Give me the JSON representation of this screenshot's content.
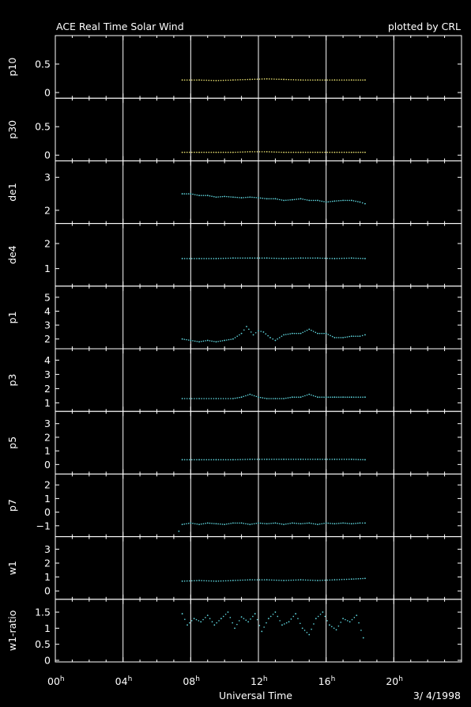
{
  "header": {
    "title": "ACE Real Time Solar Wind",
    "credit": "plotted by CRL"
  },
  "footer": {
    "xlabel": "Universal Time",
    "date": "3/ 4/1998"
  },
  "colors": {
    "background": "#000000",
    "axes": "#ffffff",
    "yellow_series": "#e8e070",
    "cyan_series": "#60d8e0"
  },
  "chart_data": {
    "type": "scatter",
    "x_unit": "hours UT",
    "xlim": [
      0,
      24
    ],
    "x_ticks": [
      {
        "value": 0,
        "label": "00",
        "sup": "h"
      },
      {
        "value": 4,
        "label": "04",
        "sup": "h"
      },
      {
        "value": 8,
        "label": "08",
        "sup": "h"
      },
      {
        "value": 12,
        "label": "12",
        "sup": "h"
      },
      {
        "value": 16,
        "label": "16",
        "sup": "h"
      },
      {
        "value": 20,
        "label": "20",
        "sup": "h"
      }
    ],
    "panels": [
      {
        "ylabel": "p10",
        "ylim": [
          -0.1,
          1.0
        ],
        "yticks": [
          {
            "v": 0,
            "t": "0"
          },
          {
            "v": 0.5,
            "t": "0.5"
          }
        ],
        "color": "yellow",
        "x": [
          7.5,
          8.5,
          9.5,
          10.5,
          11.5,
          12.5,
          13.5,
          14.5,
          15.5,
          16.5,
          17.5,
          18.3
        ],
        "y": [
          0.22,
          0.22,
          0.21,
          0.22,
          0.23,
          0.24,
          0.23,
          0.22,
          0.22,
          0.22,
          0.22,
          0.22
        ]
      },
      {
        "ylabel": "p30",
        "ylim": [
          -0.1,
          1.0
        ],
        "yticks": [
          {
            "v": 0,
            "t": "0"
          },
          {
            "v": 0.5,
            "t": "0.5"
          }
        ],
        "color": "yellow",
        "x": [
          7.5,
          8.5,
          9.5,
          10.5,
          11.5,
          12.5,
          13.5,
          14.5,
          15.5,
          16.5,
          17.5,
          18.3
        ],
        "y": [
          0.05,
          0.05,
          0.05,
          0.05,
          0.06,
          0.06,
          0.05,
          0.05,
          0.05,
          0.05,
          0.05,
          0.05
        ]
      },
      {
        "ylabel": "de1",
        "ylim": [
          1.6,
          3.5
        ],
        "yticks": [
          {
            "v": 2,
            "t": "2"
          },
          {
            "v": 3,
            "t": "3"
          }
        ],
        "color": "cyan",
        "x": [
          7.5,
          8.0,
          8.5,
          9.0,
          9.5,
          10.0,
          10.5,
          11.0,
          11.5,
          12.0,
          12.5,
          13.0,
          13.5,
          14.0,
          14.5,
          15.0,
          15.5,
          16.0,
          16.5,
          17.0,
          17.5,
          18.0,
          18.3
        ],
        "y": [
          2.5,
          2.5,
          2.45,
          2.45,
          2.4,
          2.42,
          2.4,
          2.38,
          2.4,
          2.38,
          2.35,
          2.35,
          2.3,
          2.32,
          2.35,
          2.3,
          2.3,
          2.25,
          2.28,
          2.3,
          2.3,
          2.25,
          2.2
        ]
      },
      {
        "ylabel": "de4",
        "ylim": [
          0.3,
          2.8
        ],
        "yticks": [
          {
            "v": 1,
            "t": "1"
          },
          {
            "v": 2,
            "t": "2"
          }
        ],
        "color": "cyan",
        "x": [
          7.5,
          8.5,
          9.5,
          10.5,
          11.5,
          12.5,
          13.5,
          14.5,
          15.5,
          16.5,
          17.5,
          18.3
        ],
        "y": [
          1.4,
          1.4,
          1.4,
          1.42,
          1.42,
          1.42,
          1.4,
          1.42,
          1.42,
          1.4,
          1.42,
          1.4
        ]
      },
      {
        "ylabel": "p1",
        "ylim": [
          1.3,
          5.8
        ],
        "yticks": [
          {
            "v": 2,
            "t": "2"
          },
          {
            "v": 3,
            "t": "3"
          },
          {
            "v": 4,
            "t": "4"
          },
          {
            "v": 5,
            "t": "5"
          }
        ],
        "color": "cyan",
        "x": [
          7.5,
          8.0,
          8.5,
          9.0,
          9.5,
          10.0,
          10.5,
          11.0,
          11.3,
          11.7,
          12.0,
          12.3,
          12.7,
          13.0,
          13.5,
          14.0,
          14.5,
          15.0,
          15.5,
          16.0,
          16.5,
          17.0,
          17.5,
          18.0,
          18.3
        ],
        "y": [
          2.0,
          1.9,
          1.8,
          1.9,
          1.8,
          1.9,
          2.0,
          2.4,
          2.9,
          2.3,
          2.6,
          2.5,
          2.1,
          1.9,
          2.3,
          2.4,
          2.4,
          2.7,
          2.4,
          2.4,
          2.1,
          2.1,
          2.2,
          2.2,
          2.3
        ]
      },
      {
        "ylabel": "p3",
        "ylim": [
          0.4,
          4.8
        ],
        "yticks": [
          {
            "v": 1,
            "t": "1"
          },
          {
            "v": 2,
            "t": "2"
          },
          {
            "v": 3,
            "t": "3"
          },
          {
            "v": 4,
            "t": "4"
          }
        ],
        "color": "cyan",
        "x": [
          7.5,
          8.5,
          9.5,
          10.5,
          11.0,
          11.5,
          12.0,
          12.5,
          13.0,
          13.5,
          14.0,
          14.5,
          15.0,
          15.5,
          16.0,
          16.5,
          17.0,
          17.5,
          18.3
        ],
        "y": [
          1.3,
          1.3,
          1.3,
          1.3,
          1.4,
          1.6,
          1.4,
          1.3,
          1.3,
          1.3,
          1.4,
          1.4,
          1.6,
          1.4,
          1.4,
          1.4,
          1.4,
          1.4,
          1.4
        ]
      },
      {
        "ylabel": "p5",
        "ylim": [
          -0.7,
          3.9
        ],
        "yticks": [
          {
            "v": 0,
            "t": "0"
          },
          {
            "v": 1,
            "t": "1"
          },
          {
            "v": 2,
            "t": "2"
          },
          {
            "v": 3,
            "t": "3"
          }
        ],
        "color": "cyan",
        "x": [
          7.5,
          8.5,
          9.5,
          10.5,
          11.5,
          12.5,
          13.5,
          14.5,
          15.5,
          16.5,
          17.5,
          18.3
        ],
        "y": [
          0.35,
          0.35,
          0.35,
          0.35,
          0.38,
          0.38,
          0.38,
          0.38,
          0.38,
          0.38,
          0.38,
          0.35
        ]
      },
      {
        "ylabel": "p7",
        "ylim": [
          -1.8,
          2.8
        ],
        "yticks": [
          {
            "v": -1,
            "t": "−1"
          },
          {
            "v": 0,
            "t": "0"
          },
          {
            "v": 1,
            "t": "1"
          },
          {
            "v": 2,
            "t": "2"
          }
        ],
        "color": "cyan",
        "x": [
          7.3,
          7.5,
          8.0,
          8.5,
          9.0,
          9.5,
          10.0,
          10.5,
          11.0,
          11.5,
          12.0,
          12.5,
          13.0,
          13.5,
          14.0,
          14.5,
          15.0,
          15.5,
          16.0,
          16.5,
          17.0,
          17.5,
          18.0,
          18.3
        ],
        "y": [
          -1.4,
          -0.9,
          -0.8,
          -0.9,
          -0.8,
          -0.85,
          -0.9,
          -0.8,
          -0.8,
          -0.9,
          -0.8,
          -0.85,
          -0.8,
          -0.9,
          -0.8,
          -0.85,
          -0.8,
          -0.9,
          -0.8,
          -0.85,
          -0.8,
          -0.85,
          -0.8,
          -0.8
        ]
      },
      {
        "ylabel": "w1",
        "ylim": [
          -0.6,
          3.9
        ],
        "yticks": [
          {
            "v": 0,
            "t": "0"
          },
          {
            "v": 1,
            "t": "1"
          },
          {
            "v": 2,
            "t": "2"
          },
          {
            "v": 3,
            "t": "3"
          }
        ],
        "color": "cyan",
        "x": [
          7.5,
          8.5,
          9.5,
          10.5,
          11.5,
          12.5,
          13.5,
          14.5,
          15.5,
          16.5,
          17.5,
          18.3
        ],
        "y": [
          0.7,
          0.75,
          0.7,
          0.75,
          0.8,
          0.8,
          0.75,
          0.8,
          0.75,
          0.8,
          0.85,
          0.9
        ]
      },
      {
        "ylabel": "w1-ratio",
        "ylim": [
          -0.05,
          1.9
        ],
        "yticks": [
          {
            "v": 0,
            "t": "0"
          },
          {
            "v": 0.5,
            "t": "0.5"
          },
          {
            "v": 1,
            "t": "1"
          },
          {
            "v": 1.5,
            "t": "1.5"
          }
        ],
        "color": "cyan",
        "x": [
          7.5,
          7.8,
          8.2,
          8.6,
          9.0,
          9.4,
          9.8,
          10.2,
          10.6,
          11.0,
          11.4,
          11.8,
          12.2,
          12.6,
          13.0,
          13.4,
          13.8,
          14.2,
          14.6,
          15.0,
          15.4,
          15.8,
          16.2,
          16.6,
          17.0,
          17.4,
          17.8,
          18.2
        ],
        "y": [
          1.45,
          1.1,
          1.3,
          1.2,
          1.4,
          1.1,
          1.3,
          1.5,
          1.0,
          1.35,
          1.2,
          1.45,
          0.9,
          1.3,
          1.5,
          1.1,
          1.2,
          1.45,
          1.0,
          0.8,
          1.3,
          1.5,
          1.1,
          0.95,
          1.3,
          1.2,
          1.4,
          0.7
        ]
      }
    ]
  }
}
